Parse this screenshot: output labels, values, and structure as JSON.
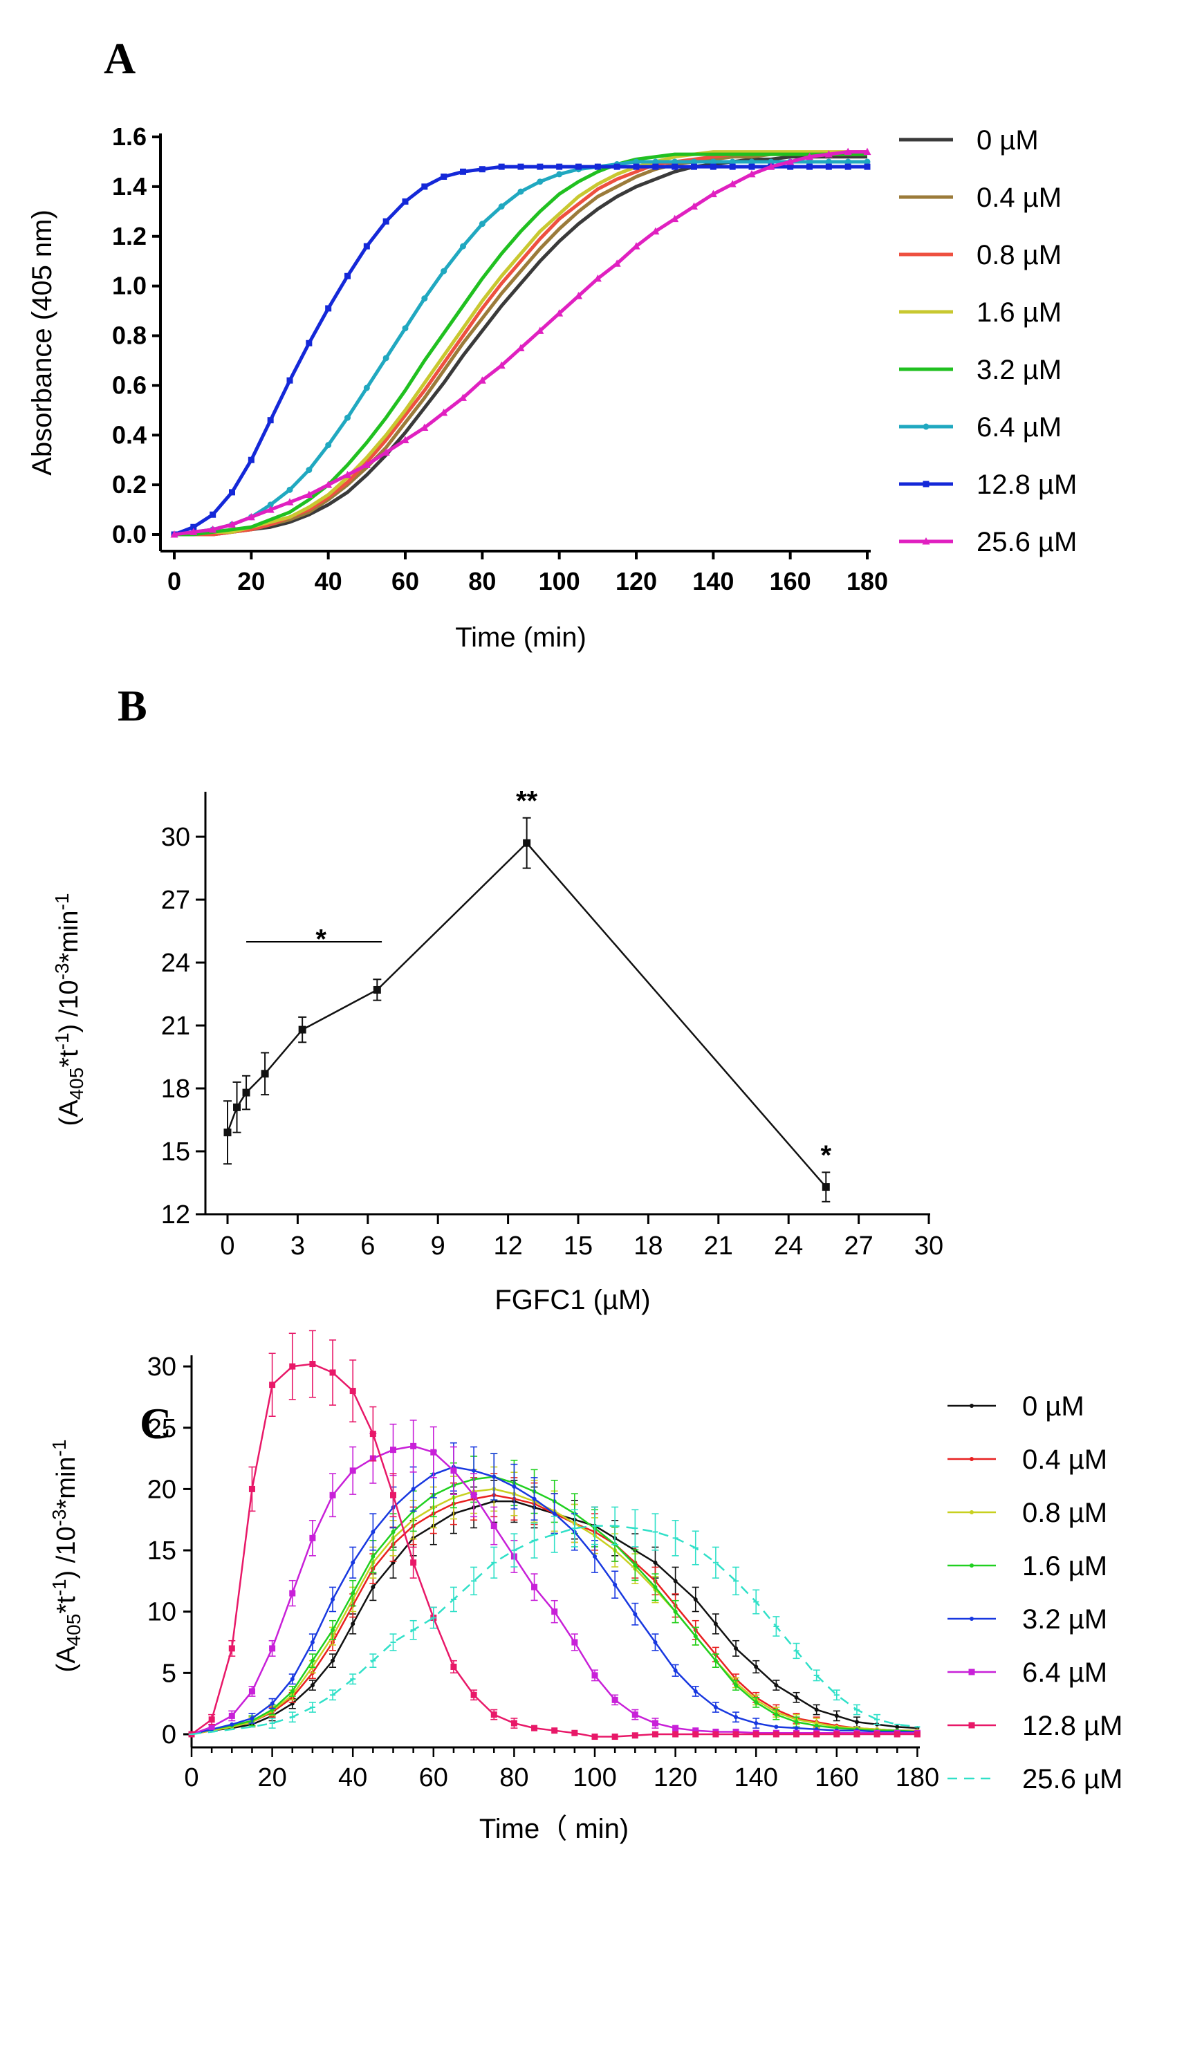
{
  "panels": [
    {
      "letter": "A",
      "chart_data": {
        "type": "line",
        "title": "",
        "xlabel": "Time (min)",
        "ylabel": "Absorbance (405 nm)",
        "xlim": [
          0,
          180
        ],
        "ylim": [
          0,
          1.6
        ],
        "xticks": [
          "0",
          "20",
          "40",
          "60",
          "80",
          "100",
          "120",
          "140",
          "160",
          "180"
        ],
        "yticks": [
          "0.0",
          "0.2",
          "0.4",
          "0.6",
          "0.8",
          "1.0",
          "1.2",
          "1.4",
          "1.6"
        ],
        "x": [
          0,
          5,
          10,
          15,
          20,
          25,
          30,
          35,
          40,
          45,
          50,
          55,
          60,
          65,
          70,
          75,
          80,
          85,
          90,
          95,
          100,
          105,
          110,
          115,
          120,
          125,
          130,
          135,
          140,
          145,
          150,
          155,
          160,
          165,
          170,
          175,
          180
        ],
        "series": [
          {
            "name": "0 µM",
            "color": "#3a3a3a",
            "marker": "none",
            "values": [
              0.0,
              0.0,
              0.0,
              0.01,
              0.02,
              0.03,
              0.05,
              0.08,
              0.12,
              0.17,
              0.24,
              0.32,
              0.41,
              0.51,
              0.61,
              0.72,
              0.82,
              0.92,
              1.01,
              1.1,
              1.18,
              1.25,
              1.31,
              1.36,
              1.4,
              1.43,
              1.46,
              1.48,
              1.49,
              1.5,
              1.51,
              1.51,
              1.52,
              1.52,
              1.52,
              1.52,
              1.52
            ]
          },
          {
            "name": "0.4 µM",
            "color": "#9b7b3a",
            "marker": "none",
            "values": [
              0.0,
              0.0,
              0.0,
              0.01,
              0.02,
              0.04,
              0.06,
              0.09,
              0.14,
              0.2,
              0.27,
              0.35,
              0.45,
              0.55,
              0.66,
              0.77,
              0.87,
              0.97,
              1.06,
              1.15,
              1.23,
              1.3,
              1.36,
              1.4,
              1.44,
              1.47,
              1.49,
              1.5,
              1.51,
              1.52,
              1.52,
              1.53,
              1.53,
              1.53,
              1.53,
              1.53,
              1.53
            ]
          },
          {
            "name": "0.8 µM",
            "color": "#ee5040",
            "marker": "none",
            "values": [
              0.0,
              0.0,
              0.0,
              0.01,
              0.02,
              0.04,
              0.07,
              0.1,
              0.15,
              0.21,
              0.29,
              0.38,
              0.48,
              0.58,
              0.69,
              0.8,
              0.91,
              1.01,
              1.1,
              1.19,
              1.27,
              1.33,
              1.39,
              1.43,
              1.46,
              1.49,
              1.5,
              1.51,
              1.52,
              1.53,
              1.53,
              1.53,
              1.53,
              1.53,
              1.53,
              1.53,
              1.53
            ]
          },
          {
            "name": "1.6 µM",
            "color": "#c8c830",
            "marker": "none",
            "values": [
              0.0,
              0.0,
              0.01,
              0.01,
              0.03,
              0.05,
              0.07,
              0.11,
              0.16,
              0.23,
              0.31,
              0.4,
              0.5,
              0.61,
              0.72,
              0.83,
              0.94,
              1.04,
              1.13,
              1.22,
              1.29,
              1.36,
              1.41,
              1.45,
              1.48,
              1.5,
              1.52,
              1.53,
              1.54,
              1.54,
              1.54,
              1.54,
              1.54,
              1.54,
              1.54,
              1.54,
              1.54
            ]
          },
          {
            "name": "3.2 µM",
            "color": "#20c020",
            "marker": "none",
            "values": [
              0.0,
              0.0,
              0.01,
              0.02,
              0.03,
              0.06,
              0.09,
              0.14,
              0.2,
              0.28,
              0.37,
              0.47,
              0.58,
              0.7,
              0.81,
              0.92,
              1.03,
              1.13,
              1.22,
              1.3,
              1.37,
              1.42,
              1.46,
              1.49,
              1.51,
              1.52,
              1.53,
              1.53,
              1.53,
              1.53,
              1.53,
              1.53,
              1.53,
              1.53,
              1.53,
              1.53,
              1.53
            ]
          },
          {
            "name": "6.4 µM",
            "color": "#20a8c0",
            "marker": "circle",
            "values": [
              0.0,
              0.01,
              0.02,
              0.04,
              0.07,
              0.12,
              0.18,
              0.26,
              0.36,
              0.47,
              0.59,
              0.71,
              0.83,
              0.95,
              1.06,
              1.16,
              1.25,
              1.32,
              1.38,
              1.42,
              1.45,
              1.47,
              1.48,
              1.49,
              1.5,
              1.5,
              1.5,
              1.5,
              1.5,
              1.5,
              1.5,
              1.5,
              1.5,
              1.5,
              1.5,
              1.5,
              1.5
            ]
          },
          {
            "name": "12.8 µM",
            "color": "#1428d8",
            "marker": "square",
            "values": [
              0.0,
              0.03,
              0.08,
              0.17,
              0.3,
              0.46,
              0.62,
              0.77,
              0.91,
              1.04,
              1.16,
              1.26,
              1.34,
              1.4,
              1.44,
              1.46,
              1.47,
              1.48,
              1.48,
              1.48,
              1.48,
              1.48,
              1.48,
              1.48,
              1.48,
              1.48,
              1.48,
              1.48,
              1.48,
              1.48,
              1.48,
              1.48,
              1.48,
              1.48,
              1.48,
              1.48,
              1.48
            ]
          },
          {
            "name": "25.6 µM",
            "color": "#e020c0",
            "marker": "triangle",
            "values": [
              0.0,
              0.01,
              0.02,
              0.04,
              0.07,
              0.1,
              0.13,
              0.16,
              0.2,
              0.24,
              0.28,
              0.33,
              0.38,
              0.43,
              0.49,
              0.55,
              0.62,
              0.68,
              0.75,
              0.82,
              0.89,
              0.96,
              1.03,
              1.09,
              1.16,
              1.22,
              1.27,
              1.32,
              1.37,
              1.41,
              1.45,
              1.48,
              1.5,
              1.52,
              1.53,
              1.54,
              1.54
            ]
          }
        ]
      }
    },
    {
      "letter": "B",
      "chart_data": {
        "type": "line",
        "title": "",
        "xlabel": "FGFC1 (µM)",
        "ylabel_parts": [
          "(A",
          "405",
          "*t",
          "-1",
          ")  /10",
          "-3",
          "*min",
          "-1"
        ],
        "xlim": [
          -1,
          30
        ],
        "ylim": [
          12,
          32
        ],
        "xticks": [
          "0",
          "3",
          "6",
          "9",
          "12",
          "15",
          "18",
          "21",
          "24",
          "27",
          "30"
        ],
        "yticks": [
          "12",
          "15",
          "18",
          "21",
          "24",
          "27",
          "30"
        ],
        "x": [
          0,
          0.4,
          0.8,
          1.6,
          3.2,
          6.4,
          12.8,
          25.6
        ],
        "series": [
          {
            "name": "rate",
            "color": "#111111",
            "values": [
              15.9,
              17.1,
              17.8,
              18.7,
              20.8,
              22.7,
              29.7,
              13.3
            ],
            "errors": [
              1.5,
              1.2,
              0.8,
              1.0,
              0.6,
              0.5,
              1.2,
              0.7
            ]
          }
        ],
        "annotations": [
          {
            "text": "*",
            "x": 4.0,
            "y": 25.2,
            "bracket_x": [
              0.8,
              6.6
            ]
          },
          {
            "text": "**",
            "x": 12.8,
            "y": 31.8
          },
          {
            "text": "*",
            "x": 25.6,
            "y": 14.9
          }
        ]
      }
    },
    {
      "letter": "C",
      "chart_data": {
        "type": "line",
        "title": "",
        "xlabel": "Time（ min)",
        "ylabel_parts": [
          "(A",
          "405",
          "*t",
          "-1",
          ")  /10",
          "-3",
          "*min",
          "-1"
        ],
        "xlim": [
          0,
          180
        ],
        "ylim": [
          -1,
          31
        ],
        "xticks": [
          "0",
          "20",
          "40",
          "60",
          "80",
          "100",
          "120",
          "140",
          "160",
          "180"
        ],
        "yticks": [
          "0",
          "5",
          "10",
          "15",
          "20",
          "25",
          "30"
        ],
        "x": [
          0,
          5,
          10,
          15,
          20,
          25,
          30,
          35,
          40,
          45,
          50,
          55,
          60,
          65,
          70,
          75,
          80,
          85,
          90,
          95,
          100,
          105,
          110,
          115,
          120,
          125,
          130,
          135,
          140,
          145,
          150,
          155,
          160,
          165,
          170,
          175,
          180
        ],
        "series": [
          {
            "name": "0 µM",
            "color": "#111111",
            "marker": "dot",
            "dashed": false,
            "values": [
              0.0,
              0.3,
              0.5,
              0.8,
              1.5,
              2.5,
              4,
              6,
              9,
              12,
              14,
              16,
              17,
              18,
              18.5,
              19,
              19,
              18.5,
              18,
              17.5,
              17,
              16,
              15,
              14,
              12.5,
              11,
              9,
              7,
              5.5,
              4,
              3,
              2,
              1.5,
              1,
              0.8,
              0.6,
              0.5
            ]
          },
          {
            "name": "0.4 µM",
            "color": "#e82020",
            "marker": "dot",
            "dashed": false,
            "values": [
              0.0,
              0.3,
              0.6,
              1.0,
              1.8,
              3.0,
              5,
              7.5,
              10.5,
              13.5,
              15.5,
              17,
              18,
              18.8,
              19.2,
              19.5,
              19.2,
              18.8,
              18,
              17.2,
              16.5,
              15.5,
              14,
              12.5,
              10.5,
              8.5,
              6.5,
              4.5,
              3,
              2,
              1.3,
              1,
              0.7,
              0.5,
              0.4,
              0.3,
              0.3
            ]
          },
          {
            "name": "0.8 µM",
            "color": "#c8d020",
            "marker": "dot",
            "dashed": false,
            "values": [
              0.0,
              0.3,
              0.6,
              1.0,
              1.9,
              3.2,
              5.5,
              8,
              11,
              14,
              16,
              17.5,
              18.5,
              19.3,
              19.8,
              20,
              19.6,
              19,
              18.2,
              17.2,
              16.2,
              15,
              13.5,
              11.8,
              10,
              8,
              6,
              4.2,
              2.8,
              1.8,
              1.2,
              0.9,
              0.6,
              0.5,
              0.4,
              0.3,
              0.3
            ]
          },
          {
            "name": "1.6 µM",
            "color": "#20d020",
            "marker": "dot",
            "dashed": false,
            "values": [
              0.0,
              0.4,
              0.7,
              1.1,
              2.0,
              3.5,
              6,
              8.5,
              11.5,
              14.5,
              16.5,
              18.2,
              19.5,
              20.3,
              20.8,
              21,
              20.5,
              19.8,
              19,
              18,
              16.8,
              15.5,
              13.8,
              12,
              10,
              8,
              6,
              4,
              2.6,
              1.6,
              1,
              0.7,
              0.5,
              0.4,
              0.3,
              0.3,
              0.2
            ]
          },
          {
            "name": "3.2 µM",
            "color": "#1838e0",
            "marker": "dot",
            "dashed": false,
            "values": [
              0.0,
              0.4,
              0.8,
              1.3,
              2.5,
              4.5,
              7.5,
              11,
              14,
              16.5,
              18.5,
              20,
              21.2,
              21.8,
              21.5,
              21,
              20.2,
              19.2,
              18,
              16.5,
              14.5,
              12.2,
              9.8,
              7.5,
              5.2,
              3.5,
              2.2,
              1.4,
              0.9,
              0.6,
              0.5,
              0.4,
              0.3,
              0.3,
              0.2,
              0.2,
              0.2
            ]
          },
          {
            "name": "6.4 µM",
            "color": "#c820d8",
            "marker": "square",
            "dashed": false,
            "values": [
              0.0,
              0.6,
              1.5,
              3.5,
              7,
              11.5,
              16,
              19.5,
              21.5,
              22.5,
              23.2,
              23.5,
              23,
              21.5,
              19.5,
              17,
              14.5,
              12,
              10,
              7.5,
              4.8,
              2.8,
              1.6,
              0.9,
              0.5,
              0.3,
              0.2,
              0.2,
              0.1,
              0.1,
              0.1,
              0.1,
              0.1,
              0.1,
              0.1,
              0.1,
              0.1
            ]
          },
          {
            "name": "12.8 µM",
            "color": "#e81868",
            "marker": "square",
            "dashed": false,
            "values": [
              0.0,
              1.2,
              7,
              20,
              28.5,
              30,
              30.2,
              29.5,
              28,
              24.5,
              19.5,
              14,
              9.5,
              5.5,
              3.2,
              1.6,
              0.9,
              0.5,
              0.3,
              0.1,
              -0.2,
              -0.2,
              -0.1,
              0,
              0,
              0,
              0,
              0,
              0,
              0,
              0,
              0,
              0,
              0,
              0,
              0,
              0
            ]
          },
          {
            "name": "25.6 µM",
            "color": "#30e0c8",
            "marker": "tick",
            "dashed": true,
            "values": [
              0.0,
              0.2,
              0.4,
              0.6,
              0.9,
              1.4,
              2.2,
              3.2,
              4.5,
              6,
              7.5,
              8.5,
              9.5,
              11,
              12.5,
              14,
              15,
              15.8,
              16.3,
              16.8,
              17,
              17,
              16.8,
              16.5,
              16,
              15.2,
              14,
              12.5,
              10.8,
              8.8,
              6.8,
              4.8,
              3.2,
              2,
              1.2,
              0.8,
              0.6
            ]
          }
        ]
      }
    }
  ]
}
